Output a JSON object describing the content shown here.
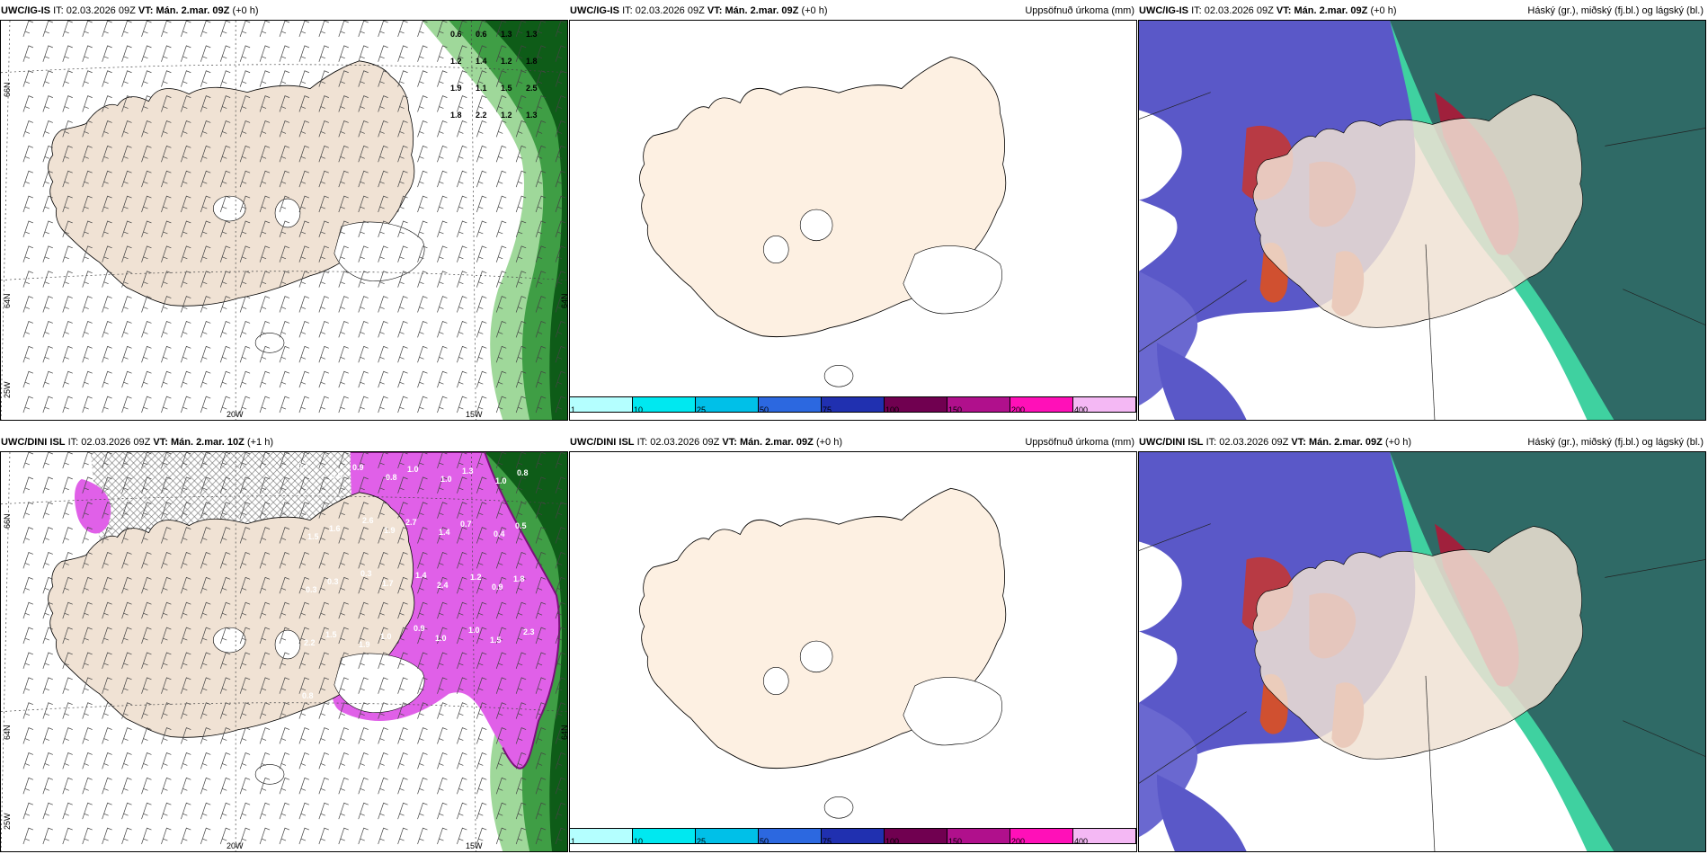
{
  "panels": [
    {
      "model": "UWC/IG-IS",
      "it": "02.03.2026 09Z",
      "vt": "Mán. 2.mar. 09Z",
      "offset": "(+0 h)",
      "right": ""
    },
    {
      "model": "UWC/IG-IS",
      "it": "02.03.2026 09Z",
      "vt": "Mán. 2.mar. 09Z",
      "offset": "(+0 h)",
      "right": "Uppsöfnuð úrkoma (mm)"
    },
    {
      "model": "UWC/IG-IS",
      "it": "02.03.2026 09Z",
      "vt": "Mán. 2.mar. 09Z",
      "offset": "(+0 h)",
      "right": "Háský (gr.), miðský (fj.bl.) og lágský (bl.)"
    },
    {
      "model": "UWC/DINI ISL",
      "it": "02.03.2026 09Z",
      "vt": "Mán. 2.mar. 10Z",
      "offset": "(+1 h)",
      "right": ""
    },
    {
      "model": "UWC/DINI ISL",
      "it": "02.03.2026 09Z",
      "vt": "Mán. 2.mar. 09Z",
      "offset": "(+0 h)",
      "right": "Uppsöfnuð úrkoma (mm)"
    },
    {
      "model": "UWC/DINI ISL",
      "it": "02.03.2026 09Z",
      "vt": "Mán. 2.mar. 09Z",
      "offset": "(+0 h)",
      "right": "Háský (gr.), miðský (fj.bl.) og lágský (bl.)"
    }
  ],
  "labels": {
    "it": "IT:",
    "vt": "VT:"
  },
  "axes": {
    "lat_66": "66N",
    "lat_64": "64N",
    "lon_25": "25W",
    "lon_20": "20W",
    "lon_15": "15W"
  },
  "precip_legend": {
    "ticks": [
      "1",
      "10",
      "25",
      "50",
      "75",
      "100",
      "150",
      "200",
      "400"
    ],
    "colors": [
      "#b4ffff",
      "#00e8f0",
      "#00c0e8",
      "#2c68e0",
      "#2030b0",
      "#700050",
      "#b0108c",
      "#ff10b8",
      "#f4b8f4"
    ]
  },
  "wind_values_top": [
    "0.6",
    "0.6",
    "1.3",
    "1.3",
    "1.2",
    "1.4",
    "1.2",
    "1.8",
    "1.9",
    "1.1",
    "1.5",
    "2.5",
    "1.8",
    "2.2",
    "1.2",
    "1.3"
  ],
  "wind_values_bottom": [
    "0.7",
    "0.8",
    "0.9",
    "0.8",
    "1.0",
    "1.0",
    "1.3",
    "1.0",
    "0.8",
    "1.5",
    "1.6",
    "2.6",
    "1.9",
    "2.7",
    "1.4",
    "0.7",
    "0.4",
    "0.5",
    "0.3",
    "0.3",
    "0.3",
    "1.7",
    "1.4",
    "2.4",
    "1.2",
    "0.9",
    "1.8",
    "2.2",
    "1.5",
    "1.9",
    "1.0",
    "0.9",
    "1.0",
    "1.0",
    "1.5",
    "2.3",
    "0.8"
  ]
}
